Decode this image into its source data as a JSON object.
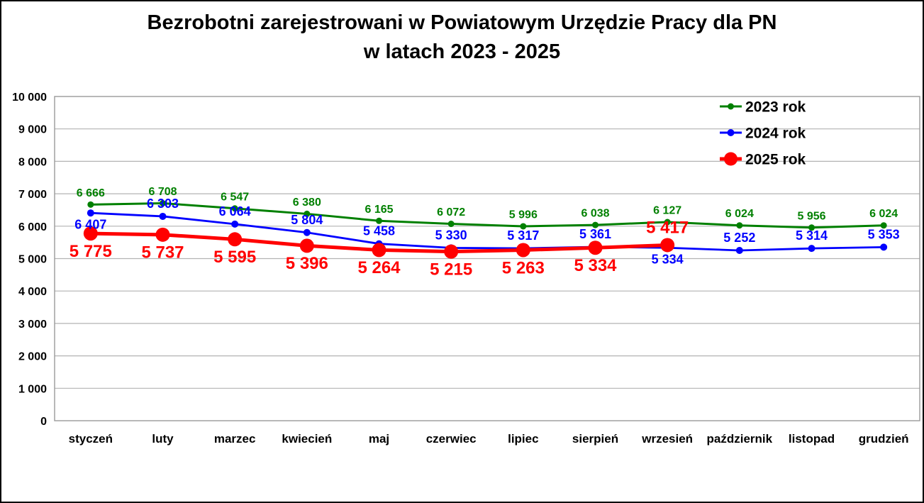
{
  "chart_data": {
    "type": "line",
    "title": "Bezrobotni zarejestrowani w Powiatowym Urzędzie Pracy dla PN",
    "subtitle": "w latach 2023 - 2025",
    "categories": [
      "styczeń",
      "luty",
      "marzec",
      "kwiecień",
      "maj",
      "czerwiec",
      "lipiec",
      "sierpień",
      "wrzesień",
      "październik",
      "listopad",
      "grudzień"
    ],
    "ylim": [
      0,
      10000
    ],
    "ytick_step": 1000,
    "ytick_labels": [
      "0",
      "1 000",
      "2 000",
      "3 000",
      "4 000",
      "5 000",
      "6 000",
      "7 000",
      "8 000",
      "9 000",
      "10 000"
    ],
    "grid": true,
    "legend": {
      "position": "top-right-inside",
      "entries": [
        "2023 rok",
        "2024 rok",
        "2025 rok"
      ]
    },
    "colors": {
      "grid": "#b3b3b3",
      "frame": "#9a9a9a",
      "axis_text": "#000000",
      "title_text": "#000000",
      "page_border": "#000000",
      "background": "#ffffff"
    },
    "series": [
      {
        "name": "2023 rok",
        "color": "#008000",
        "line_width": 3,
        "marker_radius": 4.5,
        "label_font_size": 16,
        "values": [
          6666,
          6708,
          6547,
          6380,
          6165,
          6072,
          5996,
          6038,
          6127,
          6024,
          5956,
          6024
        ],
        "labels": [
          "6 666",
          "6 708",
          "6 547",
          "6 380",
          "6 165",
          "6 072",
          "5 996",
          "6 038",
          "6 127",
          "6 024",
          "5 956",
          "6 024"
        ],
        "label_placement": [
          "above",
          "above",
          "above",
          "above",
          "above",
          "above",
          "above",
          "above",
          "above",
          "above",
          "above",
          "above"
        ]
      },
      {
        "name": "2024 rok",
        "color": "#0000ff",
        "line_width": 2.8,
        "marker_radius": 5,
        "label_font_size": 18,
        "values": [
          6407,
          6303,
          6064,
          5804,
          5458,
          5330,
          5317,
          5361,
          5334,
          5252,
          5314,
          5353
        ],
        "labels": [
          "6 407",
          "6 303",
          "6 064",
          "5 804",
          "5 458",
          "5 330",
          "5 317",
          "5 361",
          "5 334",
          "5 252",
          "5 314",
          "5 353"
        ],
        "label_placement": [
          "below",
          "above",
          "above",
          "above",
          "above",
          "above",
          "above",
          "above",
          "below",
          "above",
          "above",
          "above"
        ]
      },
      {
        "name": "2025 rok",
        "color": "#ff0000",
        "line_width": 5,
        "marker_radius": 10,
        "label_font_size": 24,
        "values": [
          5775,
          5737,
          5595,
          5396,
          5264,
          5215,
          5263,
          5334,
          5417,
          null,
          null,
          null
        ],
        "labels": [
          "5 775",
          "5 737",
          "5 595",
          "5 396",
          "5 264",
          "5 215",
          "5 263",
          "5 334",
          "5 417",
          null,
          null,
          null
        ],
        "label_placement": [
          "below",
          "below",
          "below",
          "below",
          "below",
          "below",
          "below",
          "below",
          "above",
          null,
          null,
          null
        ]
      }
    ]
  }
}
